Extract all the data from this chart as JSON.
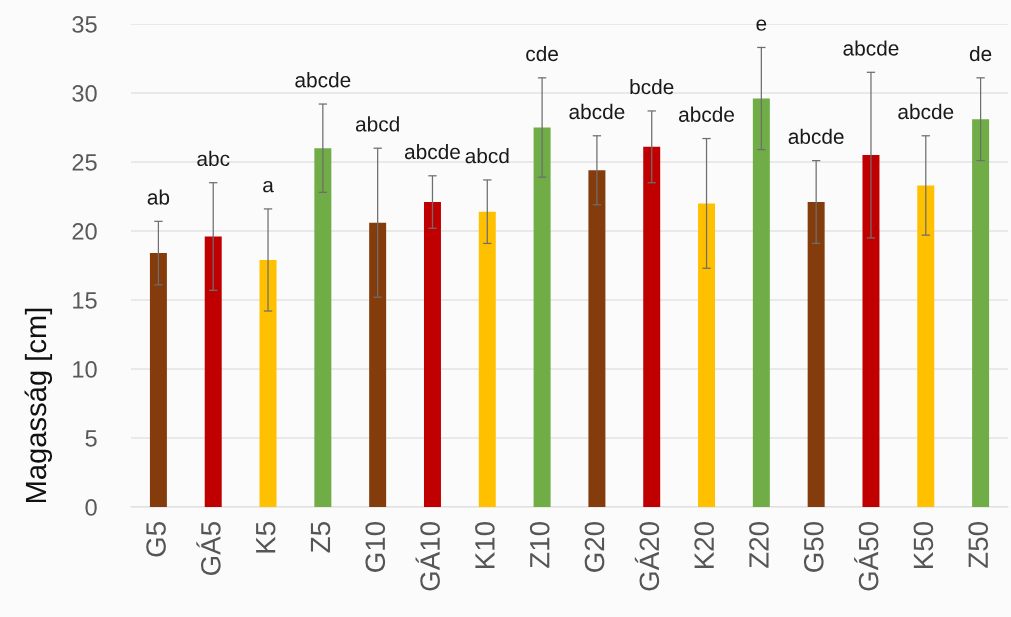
{
  "chart_data": {
    "type": "bar",
    "ylabel": "Magasság [cm]",
    "categories": [
      "G5",
      "GÁ5",
      "K5",
      "Z5",
      "G10",
      "GÁ10",
      "K10",
      "Z10",
      "G20",
      "GÁ20",
      "K20",
      "Z20",
      "G50",
      "GÁ50",
      "K50",
      "Z50"
    ],
    "values": [
      18.4,
      19.6,
      17.9,
      26.0,
      20.6,
      22.1,
      21.4,
      27.5,
      24.4,
      26.1,
      22.0,
      29.6,
      22.1,
      25.5,
      23.3,
      28.1
    ],
    "errors": [
      2.3,
      3.9,
      3.7,
      3.2,
      5.4,
      1.9,
      2.3,
      3.6,
      2.5,
      2.6,
      4.7,
      3.7,
      3.0,
      6.0,
      3.6,
      3.0
    ],
    "annotations": [
      {
        "text": "ab",
        "x": "G5",
        "y": 20.7
      },
      {
        "text": "abc",
        "x": "GÁ5",
        "y": 23.5
      },
      {
        "text": "a",
        "x": "K5",
        "y": 21.6
      },
      {
        "text": "abcde",
        "x": "Z5",
        "y": 29.2
      },
      {
        "text": "abcd",
        "x": "G10",
        "y": 26.0
      },
      {
        "text": "abcde",
        "x": "GÁ10",
        "y": 24.0
      },
      {
        "text": "abcd",
        "x": "K10",
        "y": 23.7
      },
      {
        "text": "cde",
        "x": "Z10",
        "y": 31.1
      },
      {
        "text": "abcde",
        "x": "G20",
        "y": 26.9
      },
      {
        "text": "bcde",
        "x": "GÁ20",
        "y": 28.7
      },
      {
        "text": "abcde",
        "x": "K20",
        "y": 26.7
      },
      {
        "text": "e",
        "x": "Z20",
        "y": 33.3
      },
      {
        "text": "abcde",
        "x": "G50",
        "y": 25.1
      },
      {
        "text": "abcde",
        "x": "GÁ50",
        "y": 31.5
      },
      {
        "text": "abcde",
        "x": "K50",
        "y": 26.9
      },
      {
        "text": "de",
        "x": "Z50",
        "y": 31.1
      }
    ],
    "colors": [
      "#843c0c",
      "#c00000",
      "#ffc000",
      "#70ad47",
      "#843c0c",
      "#c00000",
      "#ffc000",
      "#70ad47",
      "#843c0c",
      "#c00000",
      "#ffc000",
      "#70ad47",
      "#843c0c",
      "#c00000",
      "#ffc000",
      "#70ad47"
    ],
    "ylim": [
      0,
      35
    ],
    "yticks": [
      0,
      5,
      10,
      15,
      20,
      25,
      30,
      35
    ],
    "grid": "y"
  }
}
